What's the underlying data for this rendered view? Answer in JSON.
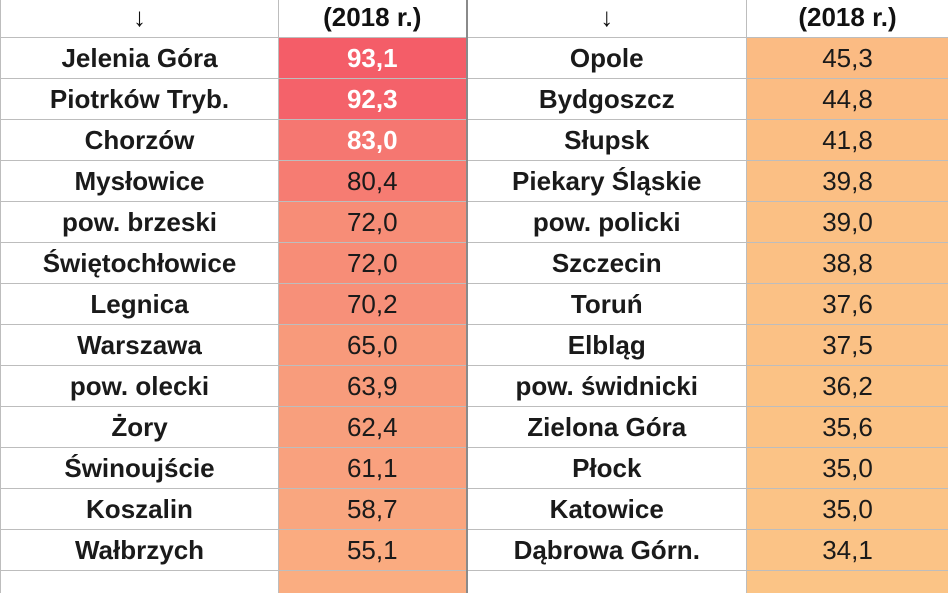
{
  "header": {
    "left_arrow": "↓",
    "left_year": "(2018 r.)",
    "right_arrow": "↓",
    "right_year": "(2018 r.)"
  },
  "rows": [
    {
      "left_name": "Jelenia Góra",
      "left_value": "93,1",
      "left_color": "#f45d68",
      "left_hot": true,
      "right_name": "Opole",
      "right_value": "45,3",
      "right_color": "#fbbb83"
    },
    {
      "left_name": "Piotrków Tryb.",
      "left_value": "92,3",
      "left_color": "#f4626a",
      "left_hot": true,
      "right_name": "Bydgoszcz",
      "right_value": "44,8",
      "right_color": "#fbbc83"
    },
    {
      "left_name": "Chorzów",
      "left_value": "83,0",
      "left_color": "#f57771",
      "left_hot": true,
      "right_name": "Słupsk",
      "right_value": "41,8",
      "right_color": "#fbbe83"
    },
    {
      "left_name": "Mysłowice",
      "left_value": "80,4",
      "left_color": "#f67c72",
      "left_hot": false,
      "right_name": "Piekary Śląskie",
      "right_value": "39,8",
      "right_color": "#fbbf84"
    },
    {
      "left_name": "pow. brzeski",
      "left_value": "72,0",
      "left_color": "#f78d77",
      "left_hot": false,
      "right_name": "pow. policki",
      "right_value": "39,0",
      "right_color": "#fbc084"
    },
    {
      "left_name": "Świętochłowice",
      "left_value": "72,0",
      "left_color": "#f78d77",
      "left_hot": false,
      "right_name": "Szczecin",
      "right_value": "38,8",
      "right_color": "#fbc084"
    },
    {
      "left_name": "Legnica",
      "left_value": "70,2",
      "left_color": "#f79079",
      "left_hot": false,
      "right_name": "Toruń",
      "right_value": "37,6",
      "right_color": "#fbc185"
    },
    {
      "left_name": "Warszawa",
      "left_value": "65,0",
      "left_color": "#f89a7b",
      "left_hot": false,
      "right_name": "Elbląg",
      "right_value": "37,5",
      "right_color": "#fbc185"
    },
    {
      "left_name": "pow. olecki",
      "left_value": "63,9",
      "left_color": "#f89c7c",
      "left_hot": false,
      "right_name": "pow. świdnicki",
      "right_value": "36,2",
      "right_color": "#fbc285"
    },
    {
      "left_name": "Żory",
      "left_value": "62,4",
      "left_color": "#f89f7d",
      "left_hot": false,
      "right_name": "Zielona Góra",
      "right_value": "35,6",
      "right_color": "#fbc285"
    },
    {
      "left_name": "Świnoujście",
      "left_value": "61,1",
      "left_color": "#f9a17e",
      "left_hot": false,
      "right_name": "Płock",
      "right_value": "35,0",
      "right_color": "#fbc386"
    },
    {
      "left_name": "Koszalin",
      "left_value": "58,7",
      "left_color": "#f9a67f",
      "left_hot": false,
      "right_name": "Katowice",
      "right_value": "35,0",
      "right_color": "#fbc386"
    },
    {
      "left_name": "Wałbrzych",
      "left_value": "55,1",
      "left_color": "#faab80",
      "left_hot": false,
      "right_name": "Dąbrowa Górn.",
      "right_value": "34,1",
      "right_color": "#fbc386"
    },
    {
      "left_name": "",
      "left_value": "",
      "left_color": "#faad81",
      "left_hot": false,
      "right_name": "",
      "right_value": "",
      "right_color": "#fbc486"
    }
  ]
}
